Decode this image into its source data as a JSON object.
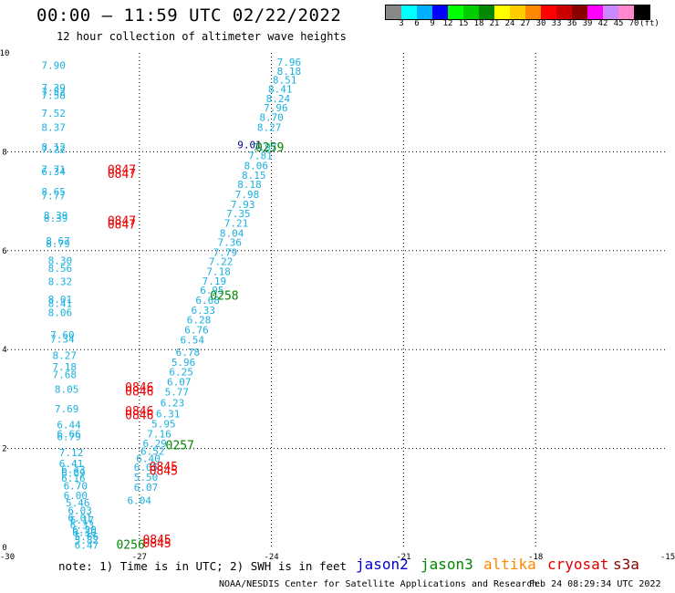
{
  "header": {
    "title": "00:00 – 11:59 UTC 02/22/2022",
    "subtitle": "12 hour collection of altimeter wave heights"
  },
  "legend": {
    "unit": "(ft)",
    "colors": [
      "#888888",
      "#00ffff",
      "#00b0ff",
      "#0000ff",
      "#00ff00",
      "#00cc00",
      "#008800",
      "#ffff00",
      "#ffcc00",
      "#ff8800",
      "#ff0000",
      "#cc0000",
      "#880000",
      "#ff00ff",
      "#cc88ff",
      "#ff88cc",
      "#000000"
    ],
    "labels": [
      "3",
      "6",
      "9",
      "12",
      "15",
      "18",
      "21",
      "24",
      "27",
      "30",
      "33",
      "36",
      "39",
      "42",
      "45",
      "70"
    ]
  },
  "footer": {
    "note": "note:  1) Time is in UTC;  2) SWH is in feet",
    "satellites": [
      {
        "name": "jason2",
        "color": "#0000cc"
      },
      {
        "name": "jason3",
        "color": "#008800"
      },
      {
        "name": "altika",
        "color": "#ff8800"
      },
      {
        "name": "cryosat",
        "color": "#dd0000"
      },
      {
        "name": "s3a",
        "color": "#880000"
      }
    ],
    "credit": "NOAA/NESDIS Center for Satellite Applications and Research",
    "timestamp": "Feb 24 08:29:34 UTC 2022"
  },
  "chart_data": {
    "type": "scatter",
    "xlim": [
      -30,
      -15
    ],
    "ylim": [
      0,
      10
    ],
    "x_ticks": [
      "-30",
      "-27",
      "-24",
      "-21",
      "-18",
      "-15"
    ],
    "y_ticks": [
      "0",
      "2",
      "4",
      "6",
      "8",
      "10"
    ],
    "grid": true,
    "track_a": {
      "color": "#1ab0e0",
      "points": [
        {
          "x": -28.95,
          "y": 9.75,
          "v": "7.90"
        },
        {
          "x": -28.95,
          "y": 9.3,
          "v": "7.39"
        },
        {
          "x": -28.95,
          "y": 9.22,
          "v": "7.52"
        },
        {
          "x": -28.95,
          "y": 9.14,
          "v": "7.58"
        },
        {
          "x": -28.95,
          "y": 8.78,
          "v": "7.52"
        },
        {
          "x": -28.95,
          "y": 8.5,
          "v": "8.37"
        },
        {
          "x": -28.95,
          "y": 8.1,
          "v": "8.12"
        },
        {
          "x": -28.95,
          "y": 8.05,
          "v": "7.22"
        },
        {
          "x": -28.95,
          "y": 7.65,
          "v": "7.71"
        },
        {
          "x": -28.95,
          "y": 7.6,
          "v": "6.34"
        },
        {
          "x": -28.95,
          "y": 7.2,
          "v": "8.65"
        },
        {
          "x": -28.95,
          "y": 7.11,
          "v": "7.77"
        },
        {
          "x": -28.9,
          "y": 6.72,
          "v": "8.39"
        },
        {
          "x": -28.9,
          "y": 6.66,
          "v": "8.39"
        },
        {
          "x": -28.85,
          "y": 6.2,
          "v": "8.67"
        },
        {
          "x": -28.85,
          "y": 6.14,
          "v": "8.79"
        },
        {
          "x": -28.8,
          "y": 5.8,
          "v": "8.30"
        },
        {
          "x": -28.8,
          "y": 5.65,
          "v": "8.56"
        },
        {
          "x": -28.8,
          "y": 5.38,
          "v": "8.32"
        },
        {
          "x": -28.8,
          "y": 5.02,
          "v": "8.01"
        },
        {
          "x": -28.8,
          "y": 4.94,
          "v": "8.41"
        },
        {
          "x": -28.8,
          "y": 4.75,
          "v": "8.06"
        },
        {
          "x": -28.75,
          "y": 4.3,
          "v": "7.60"
        },
        {
          "x": -28.75,
          "y": 4.22,
          "v": "7.34"
        },
        {
          "x": -28.7,
          "y": 3.88,
          "v": "8.27"
        },
        {
          "x": -28.7,
          "y": 3.65,
          "v": "7.18"
        },
        {
          "x": -28.7,
          "y": 3.5,
          "v": "7.68"
        },
        {
          "x": -28.65,
          "y": 3.2,
          "v": "8.05"
        },
        {
          "x": -28.65,
          "y": 2.8,
          "v": "7.69"
        },
        {
          "x": -28.6,
          "y": 2.48,
          "v": "6.44"
        },
        {
          "x": -28.6,
          "y": 2.3,
          "v": "6.66"
        },
        {
          "x": -28.6,
          "y": 2.24,
          "v": "6.79"
        },
        {
          "x": -28.55,
          "y": 1.92,
          "v": "7.12"
        },
        {
          "x": -28.55,
          "y": 1.7,
          "v": "6.41"
        },
        {
          "x": -28.5,
          "y": 1.58,
          "v": "6.43"
        },
        {
          "x": -28.5,
          "y": 1.5,
          "v": "6.69"
        },
        {
          "x": -28.5,
          "y": 1.4,
          "v": "6.16"
        },
        {
          "x": -28.45,
          "y": 1.25,
          "v": "6.70"
        },
        {
          "x": -28.45,
          "y": 1.05,
          "v": "6.00"
        },
        {
          "x": -28.4,
          "y": 0.9,
          "v": "5.46"
        },
        {
          "x": -28.35,
          "y": 0.75,
          "v": "6.03"
        },
        {
          "x": -28.35,
          "y": 0.6,
          "v": "6.01"
        },
        {
          "x": -28.3,
          "y": 0.55,
          "v": "6.17"
        },
        {
          "x": -28.3,
          "y": 0.45,
          "v": "6.33"
        },
        {
          "x": -28.25,
          "y": 0.36,
          "v": "6.20"
        },
        {
          "x": -28.25,
          "y": 0.3,
          "v": "6.30"
        },
        {
          "x": -28.2,
          "y": 0.22,
          "v": "5.66"
        },
        {
          "x": -28.2,
          "y": 0.15,
          "v": "5.82"
        },
        {
          "x": -28.2,
          "y": 0.05,
          "v": "6.47"
        }
      ]
    },
    "track_b": {
      "color": "#1ab0e0",
      "points": [
        {
          "x": -23.6,
          "y": 9.82,
          "v": "7.96"
        },
        {
          "x": -23.6,
          "y": 9.63,
          "v": "8.18"
        },
        {
          "x": -23.7,
          "y": 9.46,
          "v": "8.51"
        },
        {
          "x": -23.8,
          "y": 9.27,
          "v": "8.41"
        },
        {
          "x": -23.85,
          "y": 9.08,
          "v": "8.24"
        },
        {
          "x": -23.9,
          "y": 8.89,
          "v": "7.96"
        },
        {
          "x": -24.0,
          "y": 8.7,
          "v": "8.70"
        },
        {
          "x": -24.05,
          "y": 8.5,
          "v": "8.27"
        },
        {
          "x": -24.15,
          "y": 8.1,
          "v": "7.97"
        },
        {
          "x": -24.25,
          "y": 7.92,
          "v": "7.81"
        },
        {
          "x": -24.35,
          "y": 7.72,
          "v": "8.06"
        },
        {
          "x": -24.4,
          "y": 7.53,
          "v": "8.15"
        },
        {
          "x": -24.5,
          "y": 7.34,
          "v": "8.18"
        },
        {
          "x": -24.55,
          "y": 7.14,
          "v": "7.98"
        },
        {
          "x": -24.65,
          "y": 6.94,
          "v": "7.93"
        },
        {
          "x": -24.75,
          "y": 6.75,
          "v": "7.35"
        },
        {
          "x": -24.8,
          "y": 6.56,
          "v": "7.21"
        },
        {
          "x": -24.9,
          "y": 6.36,
          "v": "8.04"
        },
        {
          "x": -24.95,
          "y": 6.17,
          "v": "7.36"
        },
        {
          "x": -25.05,
          "y": 5.97,
          "v": "7.79"
        },
        {
          "x": -25.15,
          "y": 5.78,
          "v": "7.22"
        },
        {
          "x": -25.2,
          "y": 5.58,
          "v": "7.18"
        },
        {
          "x": -25.3,
          "y": 5.39,
          "v": "7.19"
        },
        {
          "x": -25.35,
          "y": 5.2,
          "v": "6.95"
        },
        {
          "x": -25.45,
          "y": 5.0,
          "v": "6.68"
        },
        {
          "x": -25.55,
          "y": 4.8,
          "v": "6.33"
        },
        {
          "x": -25.65,
          "y": 4.6,
          "v": "6.28"
        },
        {
          "x": -25.7,
          "y": 4.4,
          "v": "6.76"
        },
        {
          "x": -25.8,
          "y": 4.2,
          "v": "6.54"
        },
        {
          "x": -25.9,
          "y": 3.95,
          "v": "6.78"
        },
        {
          "x": -26.0,
          "y": 3.75,
          "v": "5.96"
        },
        {
          "x": -26.05,
          "y": 3.55,
          "v": "6.25"
        },
        {
          "x": -26.1,
          "y": 3.35,
          "v": "6.07"
        },
        {
          "x": -26.15,
          "y": 3.15,
          "v": "5.77"
        },
        {
          "x": -26.25,
          "y": 2.92,
          "v": "6.23"
        },
        {
          "x": -26.35,
          "y": 2.7,
          "v": "6.31"
        },
        {
          "x": -26.45,
          "y": 2.5,
          "v": "5.95"
        },
        {
          "x": -26.55,
          "y": 2.3,
          "v": "7.16"
        },
        {
          "x": -26.65,
          "y": 2.1,
          "v": "6.29"
        },
        {
          "x": -26.7,
          "y": 1.95,
          "v": "6.52"
        },
        {
          "x": -26.8,
          "y": 1.8,
          "v": "6.40"
        },
        {
          "x": -26.85,
          "y": 1.62,
          "v": "6.05"
        },
        {
          "x": -26.85,
          "y": 1.42,
          "v": "5.50"
        },
        {
          "x": -26.85,
          "y": 1.22,
          "v": "6.07"
        },
        {
          "x": -27.0,
          "y": 0.95,
          "v": "6.04"
        }
      ]
    },
    "special": [
      {
        "x": -24.5,
        "y": 8.15,
        "v": "9.01",
        "color": "#000080"
      }
    ],
    "time_labels": [
      {
        "x": -24.04,
        "y": 8.08,
        "v": "0259",
        "color": "#008800"
      },
      {
        "x": -25.07,
        "y": 5.08,
        "v": "0258",
        "color": "#008800"
      },
      {
        "x": -26.08,
        "y": 2.06,
        "v": "0257",
        "color": "#008800"
      },
      {
        "x": -27.2,
        "y": 0.05,
        "v": "0256",
        "color": "#008800"
      },
      {
        "x": -27.4,
        "y": 7.63,
        "v": "0847",
        "color": "#ee0000"
      },
      {
        "x": -27.4,
        "y": 7.55,
        "v": "0847",
        "color": "#ee0000"
      },
      {
        "x": -27.4,
        "y": 6.6,
        "v": "0847",
        "color": "#ee0000"
      },
      {
        "x": -27.4,
        "y": 6.52,
        "v": "0847",
        "color": "#ee0000"
      },
      {
        "x": -27.0,
        "y": 3.23,
        "v": "0846",
        "color": "#ee0000"
      },
      {
        "x": -27.0,
        "y": 3.15,
        "v": "0846",
        "color": "#ee0000"
      },
      {
        "x": -27.0,
        "y": 2.75,
        "v": "0846",
        "color": "#ee0000"
      },
      {
        "x": -27.0,
        "y": 2.67,
        "v": "0846",
        "color": "#ee0000"
      },
      {
        "x": -26.45,
        "y": 1.62,
        "v": "0845",
        "color": "#ee0000"
      },
      {
        "x": -26.45,
        "y": 1.54,
        "v": "0845",
        "color": "#ee0000"
      },
      {
        "x": -26.6,
        "y": 0.15,
        "v": "0845",
        "color": "#ee0000"
      },
      {
        "x": -26.6,
        "y": 0.07,
        "v": "0845",
        "color": "#ee0000"
      }
    ]
  }
}
